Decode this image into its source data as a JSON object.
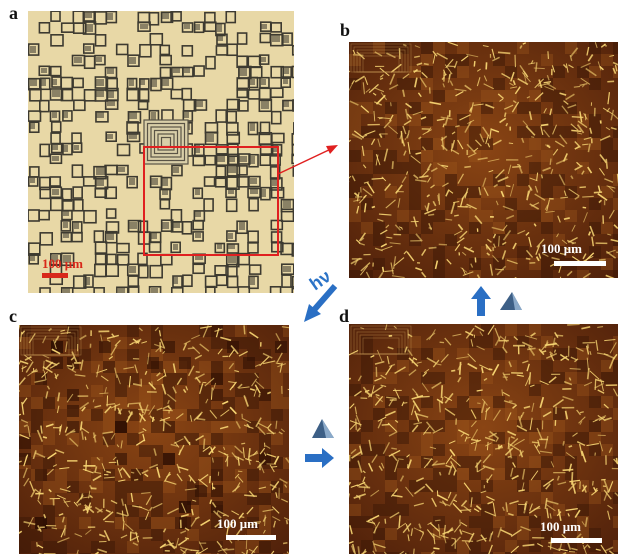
{
  "panels": {
    "a": {
      "label": "a",
      "scale": "100 μm"
    },
    "b": {
      "label": "b",
      "scale": "100 μm"
    },
    "c": {
      "label": "c",
      "scale": "100 μm"
    },
    "d": {
      "label": "d",
      "scale": "100 μm"
    }
  },
  "hv": "hν",
  "colors": {
    "panel_a_bg": "#e8d8a6",
    "panel_a_pattern": "#3d3a30",
    "dark_field": "#6a2f0e",
    "crystal": "#f6d472",
    "highlight_box": "#e02020",
    "arrow": "#2a6fc4",
    "prism": "#3d5f86"
  }
}
